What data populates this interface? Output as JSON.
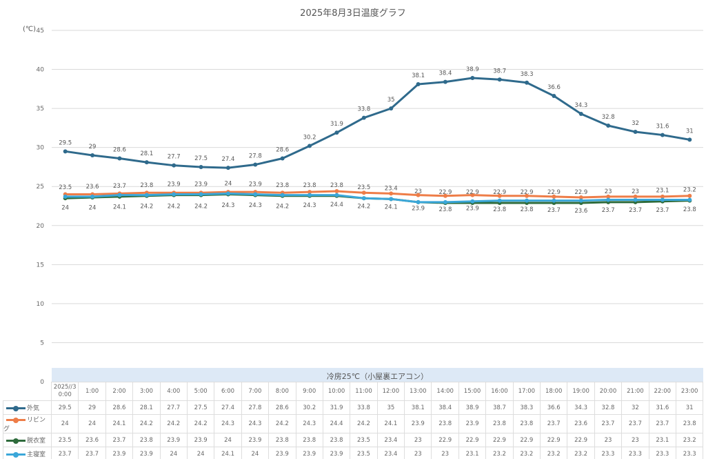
{
  "chart_data": {
    "type": "line",
    "title": "2025年8月3日温度グラフ",
    "ylabel": "(℃)",
    "ylim": [
      0,
      45
    ],
    "yticks": [
      "0",
      "5",
      "10",
      "15",
      "20",
      "25",
      "30",
      "35",
      "40",
      "45"
    ],
    "band_label": "冷房25℃（小屋裏エアコン）",
    "categories": [
      "2025//3 0:00",
      "1:00",
      "2:00",
      "3:00",
      "4:00",
      "5:00",
      "6:00",
      "7:00",
      "8:00",
      "9:00",
      "10:00",
      "11:00",
      "12:00",
      "13:00",
      "14:00",
      "15:00",
      "16:00",
      "17:00",
      "18:00",
      "19:00",
      "20:00",
      "21:00",
      "22:00",
      "23:00"
    ],
    "series": [
      {
        "name": "外気",
        "color": "#2f6a8c",
        "labels": "above",
        "values": [
          29.5,
          29,
          28.6,
          28.1,
          27.7,
          27.5,
          27.4,
          27.8,
          28.6,
          30.2,
          31.9,
          33.8,
          35,
          38.1,
          38.4,
          38.9,
          38.7,
          38.3,
          36.6,
          34.3,
          32.8,
          32,
          31.6,
          31
        ]
      },
      {
        "name": "リビング",
        "color": "#ee7d48",
        "labels": "below",
        "values": [
          24,
          24,
          24.1,
          24.2,
          24.2,
          24.2,
          24.3,
          24.3,
          24.2,
          24.3,
          24.4,
          24.2,
          24.1,
          23.9,
          23.8,
          23.9,
          23.8,
          23.8,
          23.7,
          23.6,
          23.7,
          23.7,
          23.7,
          23.8
        ]
      },
      {
        "name": "脱衣室",
        "color": "#2e6b3c",
        "labels": "above",
        "values": [
          23.5,
          23.6,
          23.7,
          23.8,
          23.9,
          23.9,
          24,
          23.9,
          23.8,
          23.8,
          23.8,
          23.5,
          23.4,
          23,
          22.9,
          22.9,
          22.9,
          22.9,
          22.9,
          22.9,
          23,
          23,
          23.1,
          23.2
        ]
      },
      {
        "name": "主寝室",
        "color": "#3ba7d9",
        "labels": "none",
        "values": [
          23.7,
          23.7,
          23.9,
          23.9,
          24,
          24,
          24.1,
          24,
          23.9,
          23.9,
          23.9,
          23.5,
          23.4,
          23,
          23,
          23.1,
          23.2,
          23.2,
          23.2,
          23.2,
          23.3,
          23.3,
          23.3,
          23.3
        ]
      }
    ]
  }
}
